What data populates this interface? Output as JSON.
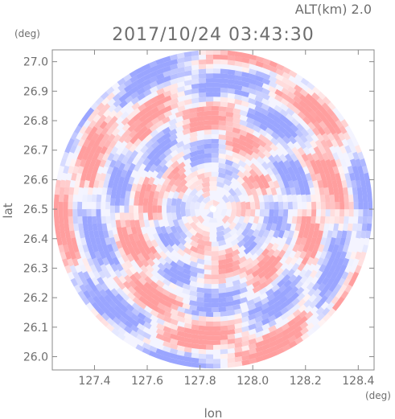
{
  "header": {
    "altitude_label": "ALT(km) 2.0",
    "timestamp": "2017/10/24 03:43:30"
  },
  "chart_data": {
    "type": "heatmap",
    "title": "2017/10/24 03:43:30",
    "subtitle": "ALT(km) 2.0",
    "xlabel": "lon",
    "ylabel": "lat",
    "x_unit": "(deg)",
    "y_unit": "(deg)",
    "xlim": [
      127.24,
      128.46
    ],
    "ylim": [
      25.955,
      27.04
    ],
    "x_ticks": [
      127.4,
      127.6,
      127.8,
      128.0,
      128.2,
      128.4
    ],
    "y_ticks": [
      26.0,
      26.1,
      26.2,
      26.3,
      26.4,
      26.5,
      26.6,
      26.7,
      26.8,
      26.9,
      27.0
    ],
    "x_tick_labels": [
      "127.4",
      "127.6",
      "127.8",
      "128.0",
      "128.2",
      "128.4"
    ],
    "y_tick_labels": [
      "26.0",
      "26.1",
      "26.2",
      "26.3",
      "26.4",
      "26.5",
      "26.6",
      "26.7",
      "26.8",
      "26.9",
      "27.0"
    ],
    "center": {
      "lon": 127.85,
      "lat": 26.5
    },
    "radius_lat_deg": 0.54,
    "colormap": [
      "#9aa5ff",
      "#ffffff",
      "#ff9e9e"
    ],
    "grid": false,
    "legend": "none"
  }
}
